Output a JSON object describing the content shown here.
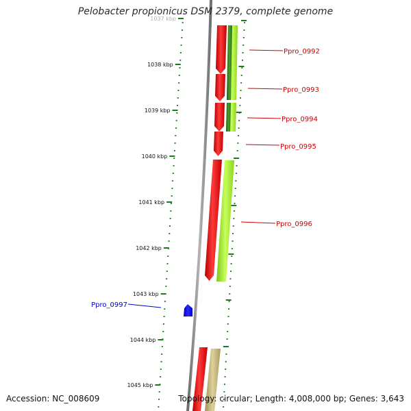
{
  "title": "Pelobacter propionicus DSM 2379, complete genome",
  "footer": {
    "accession": "Accession: NC_008609",
    "summary": "Topology: circular; Length: 4,008,000 bp; Genes: 3,643"
  },
  "colors": {
    "backbone": "#8a8a8a",
    "tick_marks": "#1c7a1c",
    "dots": "#2a8a2a",
    "gene_red": "#e60000",
    "orf_green_light": "#a8ee30",
    "orf_green_dark": "#2e7d16",
    "orf_tan": "#c8bd7e",
    "gene_blue": "#0000ee",
    "label_red": "#cc0000",
    "label_blue": "#0000cc"
  },
  "scale_ticks": [
    "1037 kbp",
    "1038 kbp",
    "1039 kbp",
    "1040 kbp",
    "1041 kbp",
    "1042 kbp",
    "1043 kbp",
    "1044 kbp",
    "1045 kbp"
  ],
  "genes": [
    {
      "name": "Ppro_0992",
      "color": "red"
    },
    {
      "name": "Ppro_0993",
      "color": "red"
    },
    {
      "name": "Ppro_0994",
      "color": "red"
    },
    {
      "name": "Ppro_0995",
      "color": "red"
    },
    {
      "name": "Ppro_0996",
      "color": "red"
    },
    {
      "name": "Ppro_0997",
      "color": "blue"
    }
  ]
}
